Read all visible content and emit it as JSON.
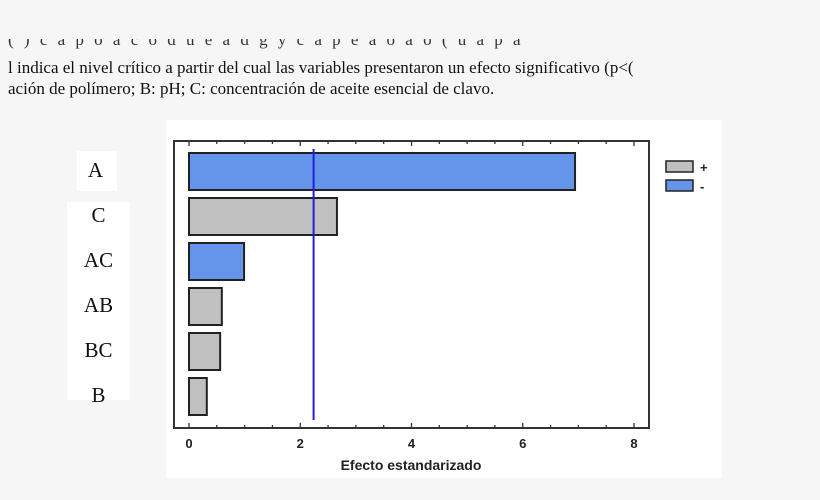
{
  "caption": {
    "line0": "( )  c  a  p  o  a  c  o  d  u  e  a  d  g  y  c  a  p  e  a  o  a  o  (  u  a  p  a",
    "line1": "l indica el nivel crítico a partir del cual las variables presentaron un efecto significativo (p<(",
    "line2": "ación de polímero; B: pH; C: concentración de aceite esencial de clavo."
  },
  "colors": {
    "positive": "#c0c0c0",
    "negative": "#6495ea",
    "critical_line": "#2020e0"
  },
  "chart_data": {
    "type": "bar",
    "orientation": "horizontal",
    "categories": [
      "A",
      "C",
      "AC",
      "AB",
      "BC",
      "B"
    ],
    "values": [
      6.94,
      2.66,
      0.99,
      0.59,
      0.56,
      0.32
    ],
    "signs": [
      "-",
      "+",
      "-",
      "+",
      "+",
      "+"
    ],
    "critical_value": 2.24,
    "xlabel": "Efecto estandarizado",
    "xlim": [
      0,
      8
    ],
    "xticks": [
      "0",
      "2",
      "4",
      "6",
      "8"
    ],
    "legend": [
      {
        "label": "+",
        "sign": "+"
      },
      {
        "label": "-",
        "sign": "-"
      }
    ],
    "legend_position": "right",
    "grid": false
  }
}
